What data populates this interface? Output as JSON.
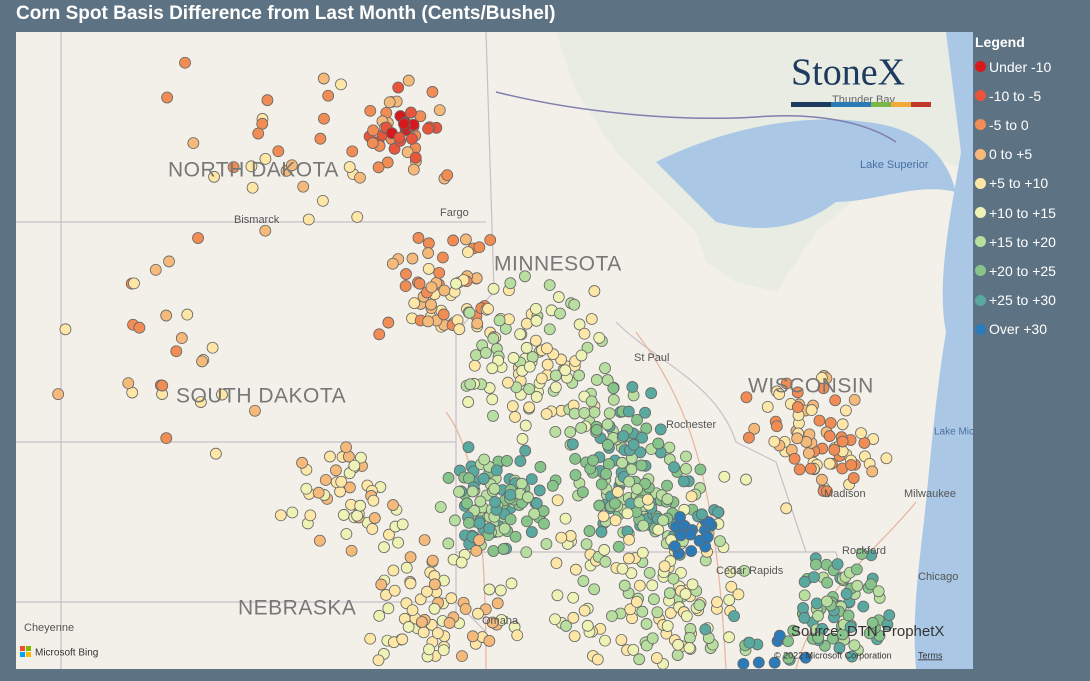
{
  "header": {
    "title": "Corn Spot Basis Difference from Last Month (Cents/Bushel)"
  },
  "legend": {
    "title": "Legend",
    "items": [
      {
        "label": "Under -10",
        "color": "#d7191c"
      },
      {
        "label": "-10 to -5",
        "color": "#e8553a"
      },
      {
        "label": "-5 to 0",
        "color": "#f08c54"
      },
      {
        "label": "0 to +5",
        "color": "#f5b97a"
      },
      {
        "label": "+5 to +10",
        "color": "#fde6a6"
      },
      {
        "label": "+10 to +15",
        "color": "#eef3b5"
      },
      {
        "label": "+15 to +20",
        "color": "#b9dfa0"
      },
      {
        "label": "+20 to +25",
        "color": "#86c48a"
      },
      {
        "label": "+25 to +30",
        "color": "#5aa9a0"
      },
      {
        "label": "Over +30",
        "color": "#2b7bb9"
      }
    ]
  },
  "map": {
    "states": [
      "NORTH DAKOTA",
      "MINNESOTA",
      "SOUTH DAKOTA",
      "WISCONSIN",
      "NEBRASKA"
    ],
    "places": [
      "Bismarck",
      "Fargo",
      "St Paul",
      "Rochester",
      "Madison",
      "Milwaukee",
      "Rockford",
      "Chicago",
      "Cedar Rapids",
      "Omaha",
      "Cheyenne",
      "Thunder Bay"
    ],
    "water": [
      "Lake Superior",
      "Lake Michigan"
    ]
  },
  "logo": "StoneX",
  "source": "Source: DTN ProphetX",
  "attribution": {
    "bing": "Microsoft Bing",
    "copyright": "© 2022 Microsoft Corporation",
    "terms": "Terms"
  }
}
